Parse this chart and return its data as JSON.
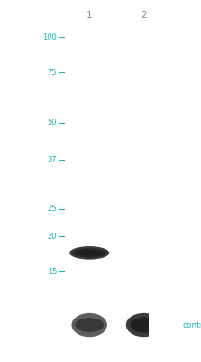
{
  "bg_color": "#ffffff",
  "gel_color": "#c8c4c0",
  "lane_gap_color": "#b0acaa",
  "teal": "#1ab5b5",
  "mw_label_color": "#1ab5b5",
  "lane_label_color": "#888888",
  "mw_labels": [
    "100",
    "75",
    "50",
    "37",
    "25",
    "20",
    "15"
  ],
  "mw_positions": [
    100,
    75,
    50,
    37,
    25,
    20,
    15
  ],
  "mw_min": 13,
  "mw_max": 110,
  "tick_fontsize": 6.0,
  "lane_label_fontsize": 7.5,
  "control_text": "control",
  "control_fontsize": 6.5
}
